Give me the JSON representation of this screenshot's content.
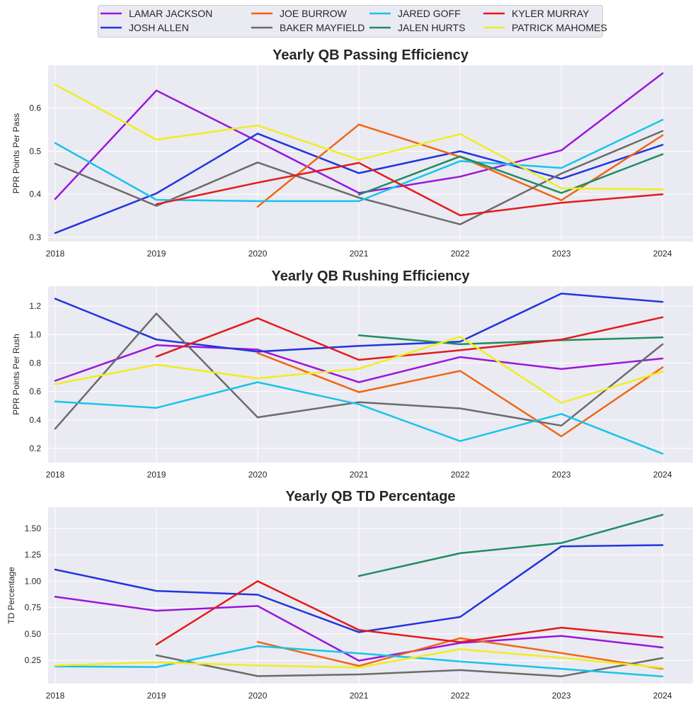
{
  "legend": {
    "placement": "top-center",
    "entries": [
      {
        "name": "LAMAR JACKSON",
        "color": "#9a16dc"
      },
      {
        "name": "JOSH ALLEN",
        "color": "#2235dd"
      },
      {
        "name": "JOE BURROW",
        "color": "#f26512"
      },
      {
        "name": "BAKER MAYFIELD",
        "color": "#6b6b6b"
      },
      {
        "name": "JARED GOFF",
        "color": "#17c4ea"
      },
      {
        "name": "JALEN HURTS",
        "color": "#1e8d5f"
      },
      {
        "name": "KYLER MURRAY",
        "color": "#e31b1b"
      },
      {
        "name": "PATRICK MAHOMES",
        "color": "#eeee20"
      }
    ]
  },
  "chart_data": [
    {
      "type": "line",
      "title": "Yearly QB Passing Efficiency",
      "xlabel": "",
      "ylabel": "PPR Points Per Pass",
      "x": [
        2018,
        2019,
        2020,
        2021,
        2022,
        2023,
        2024
      ],
      "xlim": [
        2017.93,
        2024.3
      ],
      "ylim": [
        0.29,
        0.7
      ],
      "yticks": [
        0.3,
        0.4,
        0.5,
        0.6
      ],
      "ytick_labels": [
        "0.3",
        "0.4",
        "0.5",
        "0.6"
      ],
      "grid": true,
      "series": [
        {
          "name": "LAMAR JACKSON",
          "values": [
            0.389,
            0.641,
            0.523,
            0.403,
            0.441,
            0.502,
            0.681
          ]
        },
        {
          "name": "JOSH ALLEN",
          "values": [
            0.31,
            0.402,
            0.541,
            0.449,
            0.5,
            0.436,
            0.515
          ]
        },
        {
          "name": "JOE BURROW",
          "values": [
            null,
            null,
            0.371,
            0.562,
            0.487,
            0.386,
            0.537
          ]
        },
        {
          "name": "BAKER MAYFIELD",
          "values": [
            0.471,
            0.373,
            0.474,
            0.392,
            0.33,
            0.448,
            0.547
          ]
        },
        {
          "name": "JARED GOFF",
          "values": [
            0.519,
            0.387,
            0.384,
            0.384,
            0.477,
            0.461,
            0.573
          ]
        },
        {
          "name": "JALEN HURTS",
          "values": [
            null,
            null,
            null,
            0.399,
            0.488,
            0.403,
            0.493
          ]
        },
        {
          "name": "KYLER MURRAY",
          "values": [
            null,
            0.377,
            0.427,
            0.473,
            0.351,
            0.38,
            0.4
          ]
        },
        {
          "name": "PATRICK MAHOMES",
          "values": [
            0.655,
            0.527,
            0.56,
            0.48,
            0.54,
            0.414,
            0.411
          ]
        }
      ]
    },
    {
      "type": "line",
      "title": "Yearly QB Rushing Efficiency",
      "xlabel": "",
      "ylabel": "PPR Points Per Rush",
      "x": [
        2018,
        2019,
        2020,
        2021,
        2022,
        2023,
        2024
      ],
      "xlim": [
        2017.93,
        2024.3
      ],
      "ylim": [
        0.1,
        1.34
      ],
      "yticks": [
        0.2,
        0.4,
        0.6,
        0.8,
        1.0,
        1.2
      ],
      "ytick_labels": [
        "0.2",
        "0.4",
        "0.6",
        "0.8",
        "1.0",
        "1.2"
      ],
      "grid": true,
      "series": [
        {
          "name": "LAMAR JACKSON",
          "values": [
            0.675,
            0.925,
            0.895,
            0.665,
            0.842,
            0.758,
            0.832
          ]
        },
        {
          "name": "JOSH ALLEN",
          "values": [
            1.252,
            0.965,
            0.88,
            0.92,
            0.95,
            1.288,
            1.23
          ]
        },
        {
          "name": "JOE BURROW",
          "values": [
            null,
            null,
            0.87,
            0.595,
            0.745,
            0.285,
            0.77
          ]
        },
        {
          "name": "BAKER MAYFIELD",
          "values": [
            0.338,
            1.148,
            0.418,
            0.525,
            0.481,
            0.36,
            0.932
          ]
        },
        {
          "name": "JARED GOFF",
          "values": [
            0.53,
            0.485,
            0.665,
            0.51,
            0.251,
            0.442,
            0.162
          ]
        },
        {
          "name": "JALEN HURTS",
          "values": [
            null,
            null,
            null,
            0.995,
            0.932,
            0.96,
            0.98
          ]
        },
        {
          "name": "KYLER MURRAY",
          "values": [
            null,
            0.845,
            1.115,
            0.822,
            0.89,
            0.965,
            1.122
          ]
        },
        {
          "name": "PATRICK MAHOMES",
          "values": [
            0.652,
            0.788,
            0.692,
            0.76,
            0.985,
            0.52,
            0.74
          ]
        }
      ]
    },
    {
      "type": "line",
      "title": "Yearly QB TD Percentage",
      "xlabel": "",
      "ylabel": "TD Percentage",
      "x": [
        2018,
        2019,
        2020,
        2021,
        2022,
        2023,
        2024
      ],
      "xlim": [
        2017.93,
        2024.3
      ],
      "ylim": [
        0.03,
        1.7
      ],
      "yticks": [
        0.25,
        0.5,
        0.75,
        1.0,
        1.25,
        1.5
      ],
      "ytick_labels": [
        "0.25",
        "0.50",
        "0.75",
        "1.00",
        "1.25",
        "1.50"
      ],
      "grid": true,
      "series": [
        {
          "name": "LAMAR JACKSON",
          "values": [
            0.852,
            0.72,
            0.765,
            0.247,
            0.415,
            0.482,
            0.372
          ]
        },
        {
          "name": "JOSH ALLEN",
          "values": [
            1.11,
            0.908,
            0.872,
            0.517,
            0.661,
            1.33,
            1.341
          ]
        },
        {
          "name": "JOE BURROW",
          "values": [
            null,
            null,
            0.425,
            0.198,
            0.46,
            0.32,
            0.17
          ]
        },
        {
          "name": "BAKER MAYFIELD",
          "values": [
            null,
            0.298,
            0.101,
            0.117,
            0.158,
            0.099,
            0.272
          ]
        },
        {
          "name": "JARED GOFF",
          "values": [
            0.193,
            0.187,
            0.385,
            0.317,
            0.24,
            0.17,
            0.098
          ]
        },
        {
          "name": "JALEN HURTS",
          "values": [
            null,
            null,
            null,
            1.049,
            1.265,
            1.361,
            1.628
          ]
        },
        {
          "name": "KYLER MURRAY",
          "values": [
            null,
            0.4,
            1.0,
            0.538,
            0.423,
            0.56,
            0.47
          ]
        },
        {
          "name": "PATRICK MAHOMES",
          "values": [
            0.202,
            0.232,
            0.202,
            0.183,
            0.356,
            0.275,
            0.18
          ]
        }
      ]
    }
  ]
}
